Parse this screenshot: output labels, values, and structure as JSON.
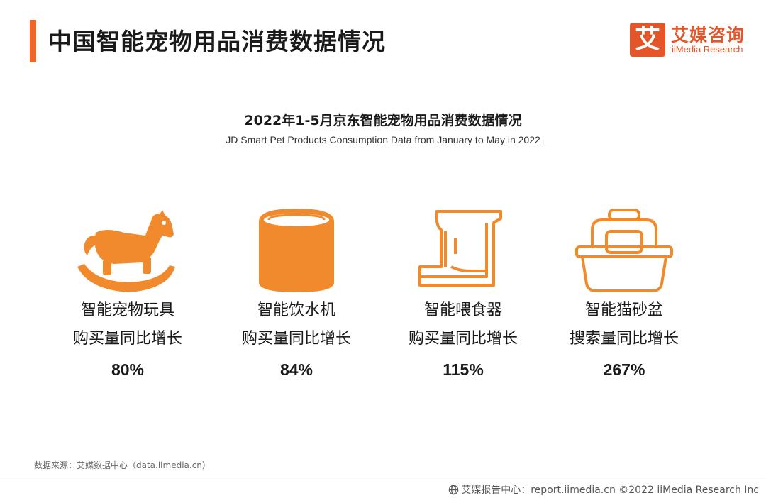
{
  "header": {
    "title": "中国智能宠物用品消费数据情况",
    "logo_mark": "艾",
    "logo_cn": "艾媒咨询",
    "logo_en": "iiMedia Research"
  },
  "chart": {
    "title": "2022年1-5月京东智能宠物用品消费数据情况",
    "subtitle": "JD Smart Pet Products Consumption Data from January to May in 2022"
  },
  "items": [
    {
      "icon": "rocking-horse-icon",
      "name": "智能宠物玩具",
      "metric": "购买量同比增长",
      "value": "80%"
    },
    {
      "icon": "water-dispenser-icon",
      "name": "智能饮水机",
      "metric": "购买量同比增长",
      "value": "84%"
    },
    {
      "icon": "pet-feeder-icon",
      "name": "智能喂食器",
      "metric": "购买量同比增长",
      "value": "115%"
    },
    {
      "icon": "pet-carrier-icon",
      "name": "智能猫砂盆",
      "metric": "搜索量同比增长",
      "value": "267%"
    }
  ],
  "source": "数据来源：艾媒数据中心（data.iimedia.cn）",
  "footer": "艾媒报告中心：report.iimedia.cn   ©2022  iiMedia Research  Inc",
  "colors": {
    "accent": "#f0662a",
    "icon": "#f08a2c",
    "logo": "#e5552a"
  }
}
